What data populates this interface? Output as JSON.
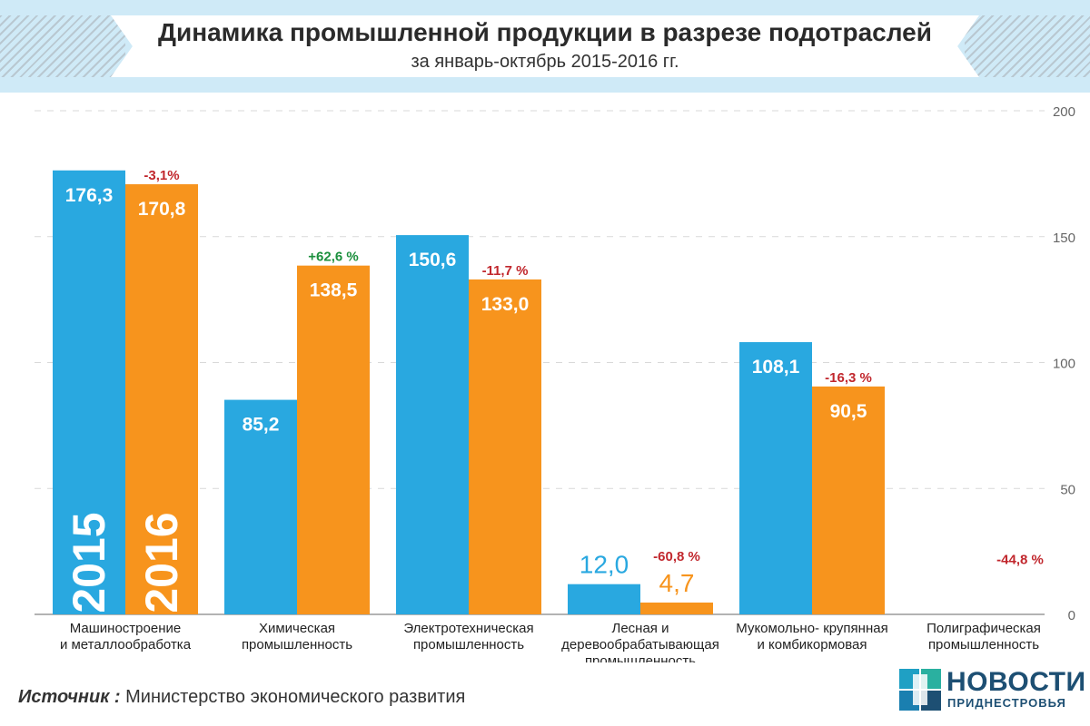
{
  "header": {
    "title": "Динамика промышленной продукции в разрезе подотраслей",
    "subtitle": "за январь-октябрь 2015-2016 гг."
  },
  "chart_data": {
    "type": "bar",
    "categories": [
      [
        "Машиностроение",
        "и металлообработка"
      ],
      [
        "Химическая",
        "промышленность"
      ],
      [
        "Электротехническая",
        "промышленность"
      ],
      [
        "Лесная и",
        "деревообрабатывающая",
        "промышленность"
      ],
      [
        "Мукомольно- крупянная",
        "и комбикормовая"
      ],
      [
        "Полиграфическая",
        "промышленность"
      ]
    ],
    "series": [
      {
        "name": "2015",
        "color": "#29a8e0",
        "values": [
          176.3,
          85.2,
          150.6,
          12.0,
          108.1,
          null
        ],
        "labels": [
          "176,3",
          "85,2",
          "150,6",
          "12,0",
          "108,1",
          ""
        ]
      },
      {
        "name": "2016",
        "color": "#f7941d",
        "values": [
          170.8,
          138.5,
          133.0,
          4.7,
          90.5,
          null
        ],
        "labels": [
          "170,8",
          "138,5",
          "133,0",
          "4,7",
          "90,5",
          ""
        ]
      }
    ],
    "changes": [
      {
        "text": "-3,1%",
        "color": "#c1272d"
      },
      {
        "text": "+62,6 %",
        "color": "#1a8f3c"
      },
      {
        "text": "-11,7 %",
        "color": "#c1272d"
      },
      {
        "text": "-60,8 %",
        "color": "#c1272d"
      },
      {
        "text": "-16,3 %",
        "color": "#c1272d"
      },
      {
        "text": "-44,8 %",
        "color": "#c1272d"
      }
    ],
    "ylim": [
      0,
      200
    ],
    "yticks": [
      0,
      50,
      100,
      150,
      200
    ],
    "grid": true,
    "gridStyle": "dashed"
  },
  "source": {
    "label": "Источник :",
    "text": "Министерство экономического развития"
  },
  "logo": {
    "name": "НОВОСТИ",
    "sub": "ПРИДНЕСТРОВЬЯ"
  }
}
